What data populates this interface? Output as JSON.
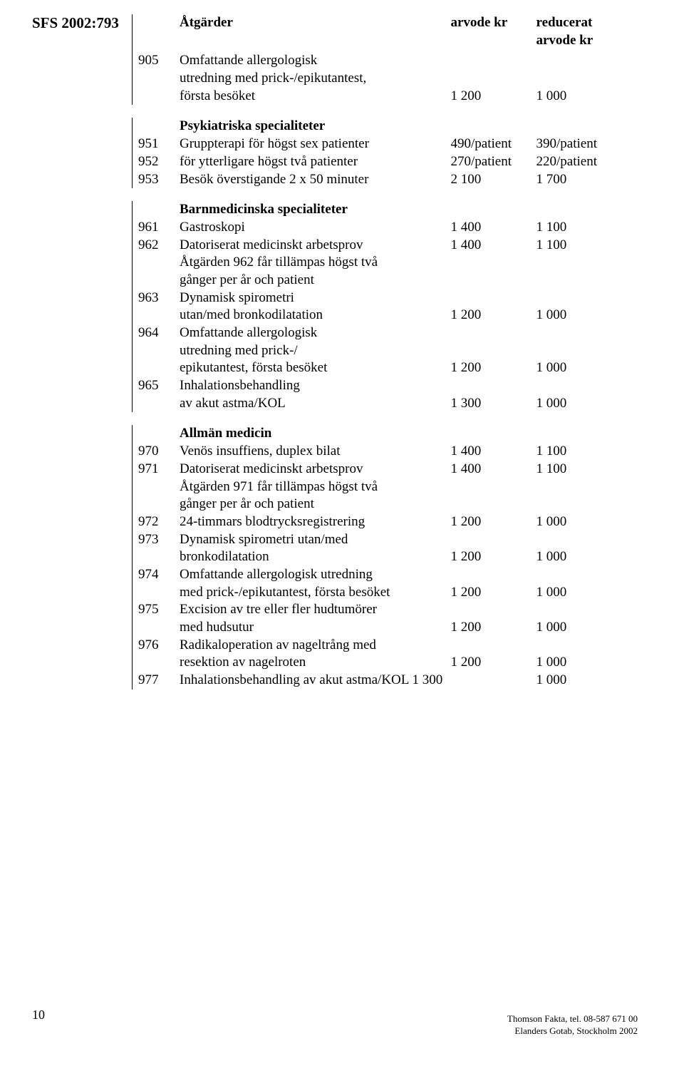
{
  "sfs_label": "SFS 2002:793",
  "header": {
    "col1": "Åtgärder",
    "col2": "arvode kr",
    "col3": "reducerat",
    "col3b": "arvode kr"
  },
  "sections": [
    {
      "rows": [
        {
          "code": "905",
          "desc_lines": [
            "Omfattande allergologisk",
            "utredning med prick-/epikutantest,",
            "första besöket"
          ],
          "arvode": "1 200",
          "reducerat": "1 000"
        }
      ]
    },
    {
      "heading": "Psykiatriska specialiteter",
      "rows": [
        {
          "code": "951",
          "desc_lines": [
            "Gruppterapi för högst sex patienter"
          ],
          "arvode": "490/patient",
          "reducerat": "390/patient"
        },
        {
          "code": "952",
          "desc_lines": [
            "för ytterligare högst två patienter"
          ],
          "arvode": "270/patient",
          "reducerat": "220/patient"
        },
        {
          "code": "953",
          "desc_lines": [
            "Besök överstigande 2 x 50 minuter"
          ],
          "arvode": "2 100",
          "reducerat": "1 700"
        }
      ]
    },
    {
      "heading": "Barnmedicinska specialiteter",
      "rows": [
        {
          "code": "961",
          "desc_lines": [
            "Gastroskopi"
          ],
          "arvode": "1 400",
          "reducerat": "1 100"
        },
        {
          "code": "962",
          "desc_lines": [
            "Datoriserat medicinskt arbetsprov",
            "Åtgärden 962 får tillämpas högst två",
            "gånger per år och patient"
          ],
          "arvode": "1 400",
          "reducerat": "1 100",
          "value_line": 0
        },
        {
          "code": "963",
          "desc_lines": [
            "Dynamisk spirometri",
            "utan/med bronkodilatation"
          ],
          "arvode": "1 200",
          "reducerat": "1 000"
        },
        {
          "code": "964",
          "desc_lines": [
            "Omfattande allergologisk",
            "utredning med prick-/",
            "epikutantest, första besöket"
          ],
          "arvode": "1 200",
          "reducerat": "1 000"
        },
        {
          "code": "965",
          "desc_lines": [
            "Inhalationsbehandling",
            "av akut astma/KOL"
          ],
          "arvode": "1 300",
          "reducerat": "1 000"
        }
      ]
    },
    {
      "heading": "Allmän medicin",
      "rows": [
        {
          "code": "970",
          "desc_lines": [
            "Venös insuffiens, duplex bilat"
          ],
          "arvode": "1 400",
          "reducerat": "1 100"
        },
        {
          "code": "971",
          "desc_lines": [
            "Datoriserat medicinskt arbetsprov",
            "Åtgärden 971 får tillämpas högst två",
            "gånger per år och patient"
          ],
          "arvode": "1 400",
          "reducerat": "1 100",
          "value_line": 0
        },
        {
          "code": "972",
          "desc_lines": [
            "24-timmars blodtrycksregistrering"
          ],
          "arvode": "1 200",
          "reducerat": "1 000"
        },
        {
          "code": "973",
          "desc_lines": [
            "Dynamisk spirometri utan/med",
            "bronkodilatation"
          ],
          "arvode": "1 200",
          "reducerat": "1 000"
        },
        {
          "code": "974",
          "desc_lines": [
            "Omfattande allergologisk utredning",
            "med prick-/epikutantest, första besöket"
          ],
          "arvode": "1 200",
          "reducerat": "1 000"
        },
        {
          "code": "975",
          "desc_lines": [
            "Excision av tre eller fler hudtumörer",
            "med hudsutur"
          ],
          "arvode": "1 200",
          "reducerat": "1 000"
        },
        {
          "code": "976",
          "desc_lines": [
            "Radikaloperation av nageltrång med",
            "resektion av nagelroten"
          ],
          "arvode": "1 200",
          "reducerat": "1 000"
        },
        {
          "code": "977",
          "desc_lines": [
            "Inhalationsbehandling av akut astma/KOL"
          ],
          "arvode": "1 300",
          "reducerat": "1 000",
          "inline_arvode": true
        }
      ]
    }
  ],
  "footer": {
    "pagenum": "10",
    "line1": "Thomson Fakta, tel. 08-587 671 00",
    "line2": "Elanders Gotab, Stockholm 2002"
  }
}
